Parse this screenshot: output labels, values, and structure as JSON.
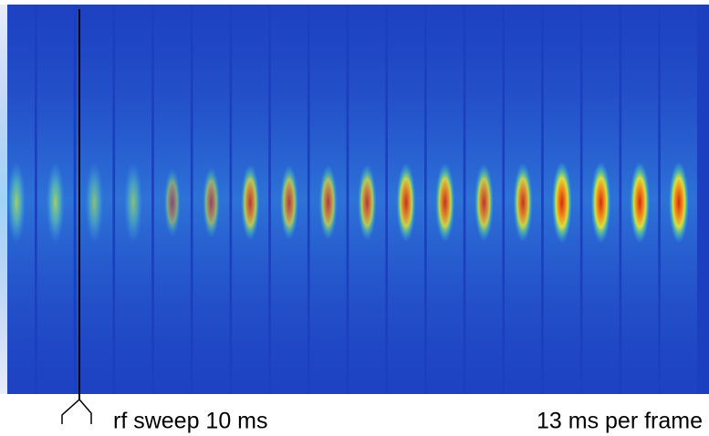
{
  "image": {
    "caption_left": "rf sweep 10 ms",
    "caption_right": "13 ms per frame"
  }
}
